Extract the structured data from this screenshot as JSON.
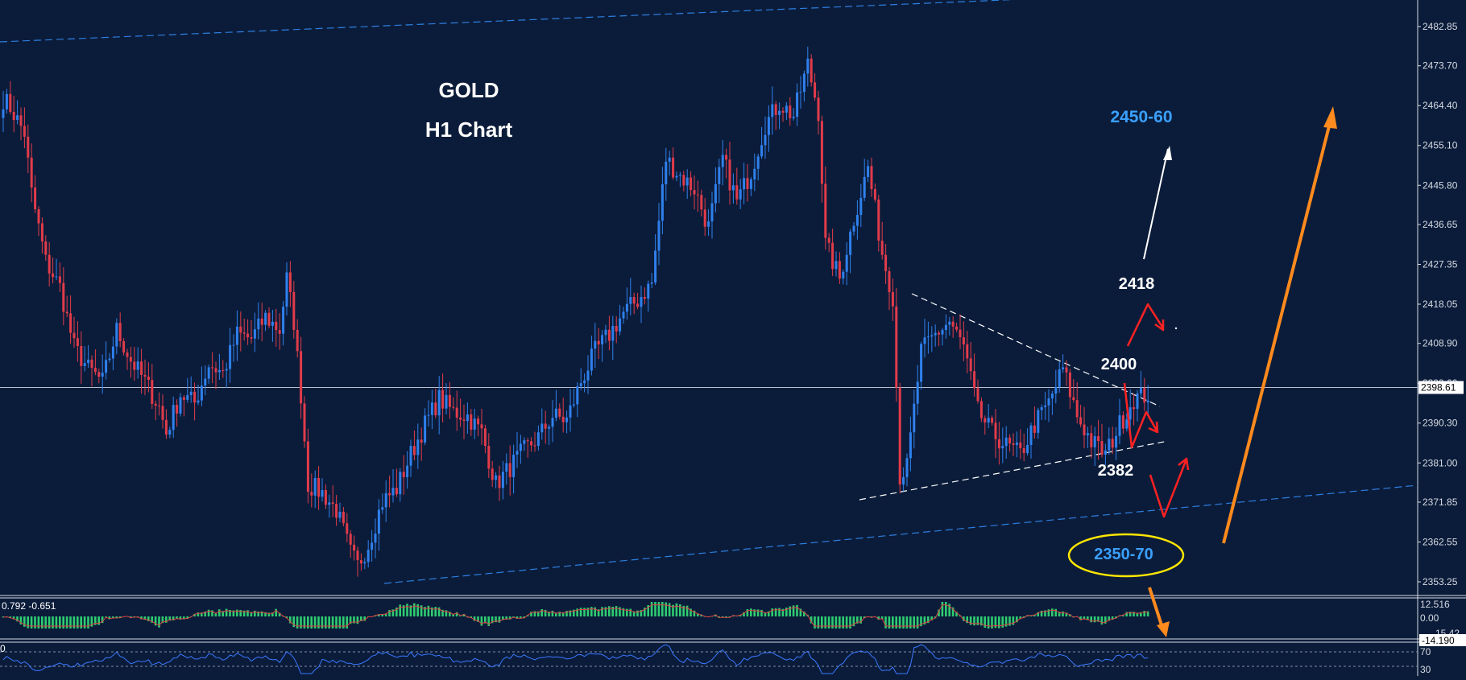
{
  "colors": {
    "background": "#0b1c3a",
    "bull_candle": "#2f80ed",
    "bear_candle": "#e23b4a",
    "white": "#ffffff",
    "price_axis_text": "#d7dbe3",
    "blue_label": "#3aa0ff",
    "red_arrow": "#ff2222",
    "orange_arrow": "#ff8a1e",
    "yellow_ellipse": "#ffe600",
    "macd_hist": "#2ecc71",
    "macd_signal": "#e04040",
    "rsi_line": "#3a78ff",
    "trend_channel": "#2d7fe0"
  },
  "chart_data": {
    "type": "candlestick",
    "title": "GOLD",
    "subtitle": "H1 Chart",
    "ylim": [
      2348,
      2487
    ],
    "price_axis_ticks": [
      "2482.85",
      "2473.70",
      "2464.40",
      "2455.10",
      "2445.80",
      "2436.65",
      "2427.35",
      "2418.05",
      "2408.90",
      "2399.60",
      "2390.30",
      "2381.00",
      "2371.85",
      "2362.55",
      "2353.25"
    ],
    "current_price": "2398.61",
    "current_price_value": 2398.61,
    "anchors": [
      [
        0,
        2466
      ],
      [
        2,
        2464
      ],
      [
        6,
        2458
      ],
      [
        8,
        2444
      ],
      [
        12,
        2428
      ],
      [
        16,
        2422
      ],
      [
        20,
        2408
      ],
      [
        24,
        2403
      ],
      [
        28,
        2400
      ],
      [
        32,
        2412
      ],
      [
        36,
        2405
      ],
      [
        40,
        2400
      ],
      [
        44,
        2394
      ],
      [
        46,
        2388
      ],
      [
        50,
        2397
      ],
      [
        54,
        2395
      ],
      [
        58,
        2404
      ],
      [
        62,
        2402
      ],
      [
        66,
        2411
      ],
      [
        70,
        2410
      ],
      [
        74,
        2415
      ],
      [
        78,
        2412
      ],
      [
        80,
        2424
      ],
      [
        82,
        2414
      ],
      [
        84,
        2397
      ],
      [
        86,
        2376
      ],
      [
        90,
        2374
      ],
      [
        94,
        2370
      ],
      [
        98,
        2360
      ],
      [
        100,
        2357
      ],
      [
        103,
        2362
      ],
      [
        107,
        2372
      ],
      [
        111,
        2375
      ],
      [
        115,
        2383
      ],
      [
        119,
        2390
      ],
      [
        123,
        2396
      ],
      [
        127,
        2393
      ],
      [
        131,
        2392
      ],
      [
        135,
        2388
      ],
      [
        139,
        2376
      ],
      [
        143,
        2380
      ],
      [
        147,
        2384
      ],
      [
        151,
        2387
      ],
      [
        155,
        2392
      ],
      [
        159,
        2391
      ],
      [
        163,
        2400
      ],
      [
        167,
        2407
      ],
      [
        171,
        2411
      ],
      [
        175,
        2416
      ],
      [
        179,
        2419
      ],
      [
        183,
        2423
      ],
      [
        187,
        2452
      ],
      [
        191,
        2448
      ],
      [
        195,
        2445
      ],
      [
        199,
        2436
      ],
      [
        203,
        2452
      ],
      [
        207,
        2442
      ],
      [
        211,
        2449
      ],
      [
        215,
        2460
      ],
      [
        219,
        2465
      ],
      [
        223,
        2462
      ],
      [
        227,
        2474
      ],
      [
        230,
        2463
      ],
      [
        232,
        2432
      ],
      [
        236,
        2424
      ],
      [
        240,
        2438
      ],
      [
        244,
        2450
      ],
      [
        248,
        2430
      ],
      [
        251,
        2420
      ],
      [
        253,
        2378
      ],
      [
        255,
        2380
      ],
      [
        259,
        2407
      ],
      [
        263,
        2411
      ],
      [
        267,
        2414
      ],
      [
        271,
        2408
      ],
      [
        275,
        2393
      ],
      [
        279,
        2388
      ],
      [
        283,
        2385
      ],
      [
        287,
        2383
      ],
      [
        291,
        2390
      ],
      [
        295,
        2395
      ],
      [
        299,
        2403
      ],
      [
        303,
        2392
      ],
      [
        307,
        2386
      ],
      [
        311,
        2383
      ],
      [
        315,
        2390
      ],
      [
        319,
        2396
      ],
      [
        323,
        2397
      ]
    ],
    "levels": {
      "upper_target": "2450-60",
      "lower_target": "2350-70",
      "resistance_2": "2418",
      "resistance_1": "2400",
      "support": "2382"
    }
  },
  "macd": {
    "label": "0.792 -0.651",
    "ticks": [
      "12.516",
      "0.00",
      "-14.190"
    ],
    "ticks_overlap": "15.42"
  },
  "rsi": {
    "left_label": "0",
    "ticks": [
      "70",
      "30"
    ]
  }
}
